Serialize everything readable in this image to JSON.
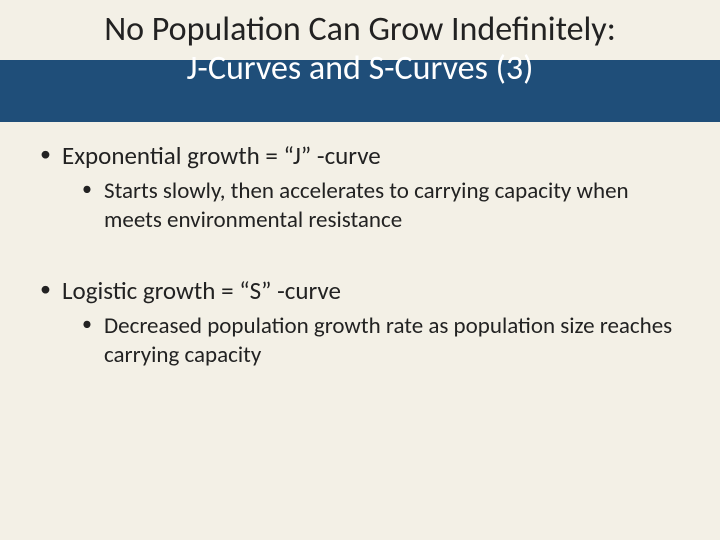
{
  "colors": {
    "slide_bg": "#f3f0e6",
    "band_bg": "#1f4e79",
    "title_top_color": "#222222",
    "title_bottom_color": "#ffffff",
    "body_text": "#222222"
  },
  "typography": {
    "title_fontsize_pt": 26,
    "body_l1_fontsize_pt": 19,
    "body_l2_fontsize_pt": 17,
    "font_family": "Calibri"
  },
  "title": {
    "line1": "No Population Can Grow Indefinitely:",
    "line2": "J-Curves and S-Curves (3)"
  },
  "bullets": [
    {
      "text": "Exponential growth  =  “J” -curve",
      "sub": [
        "Starts slowly, then accelerates to carrying capacity when meets environmental resistance"
      ]
    },
    {
      "text": "Logistic growth  =  “S” -curve",
      "sub": [
        "Decreased population growth rate as population size reaches carrying capacity"
      ]
    }
  ]
}
